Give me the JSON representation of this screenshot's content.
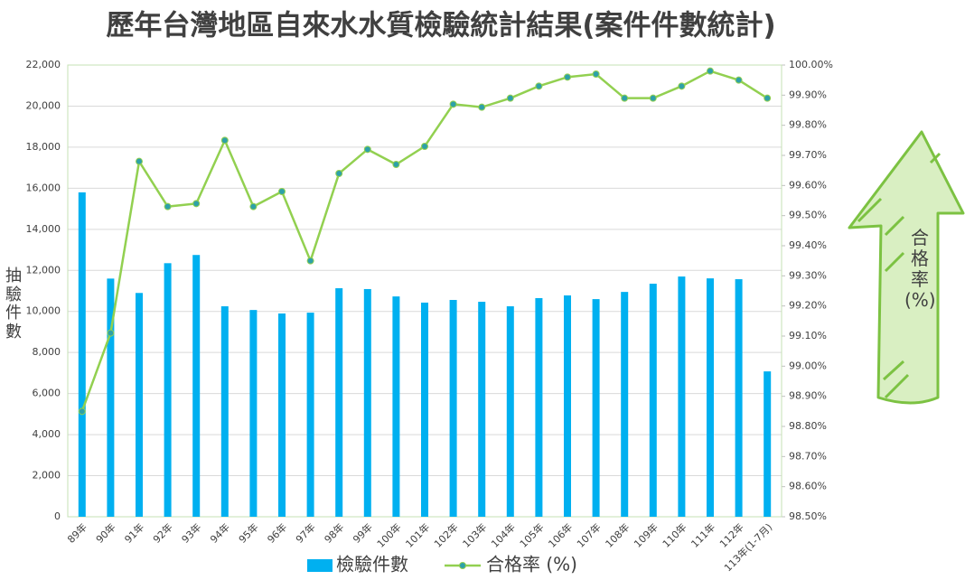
{
  "chart_data": {
    "type": "combo",
    "title": "歷年台灣地區自來水水質檢驗統計結果(案件件數統計)",
    "y_label": "抽驗件數",
    "annotation": "合格率(%)",
    "categories": [
      "89年",
      "90年",
      "91年",
      "92年",
      "93年",
      "94年",
      "95年",
      "96年",
      "97年",
      "98年",
      "99年",
      "100年",
      "101年",
      "102年",
      "103年",
      "104年",
      "105年",
      "106年",
      "107年",
      "108年",
      "109年",
      "110年",
      "111年",
      "112年",
      "113年(1-7月)"
    ],
    "series": [
      {
        "name": "檢驗件數",
        "type": "bar",
        "color": "#00b0f0",
        "values": [
          15800,
          11600,
          10900,
          12350,
          12750,
          10250,
          10070,
          9900,
          9940,
          11130,
          11090,
          10730,
          10430,
          10560,
          10470,
          10250,
          10650,
          10780,
          10600,
          10950,
          11350,
          11700,
          11610,
          11570,
          7080
        ]
      },
      {
        "name": "合格率 (%)",
        "type": "line",
        "axis": "y2",
        "color": "#92d050",
        "marker_color": "#2ea1a8",
        "values": [
          98.85,
          99.11,
          99.68,
          99.53,
          99.54,
          99.75,
          99.53,
          99.58,
          99.35,
          99.64,
          99.72,
          99.67,
          99.73,
          99.87,
          99.86,
          99.89,
          99.93,
          99.96,
          99.97,
          99.89,
          99.89,
          99.93,
          99.98,
          99.95,
          99.89
        ]
      }
    ],
    "ylim": [
      0,
      22000
    ],
    "yticks": [
      0,
      {
        "value": 2000,
        "label": "2,000"
      },
      {
        "value": 4000,
        "label": "4,000"
      },
      {
        "value": 6000,
        "label": "6,000"
      },
      {
        "value": 8000,
        "label": "8,000"
      },
      {
        "value": 10000,
        "label": "10,000"
      },
      {
        "value": 12000,
        "label": "12,000"
      },
      {
        "value": 14000,
        "label": "14,000"
      },
      {
        "value": 16000,
        "label": "16,000"
      },
      {
        "value": 18000,
        "label": "18,000"
      },
      {
        "value": 20000,
        "label": "20,000"
      },
      {
        "value": 22000,
        "label": "22,000"
      }
    ],
    "y2lim": [
      98.5,
      100
    ],
    "y2ticks": [
      {
        "value": 98.5,
        "label": "98.50%"
      },
      {
        "value": 98.6,
        "label": "98.60%"
      },
      {
        "value": 98.7,
        "label": "98.70%"
      },
      {
        "value": 98.8,
        "label": "98.80%"
      },
      {
        "value": 98.9,
        "label": "98.90%"
      },
      {
        "value": 99.0,
        "label": "99.00%"
      },
      {
        "value": 99.1,
        "label": "99.10%"
      },
      {
        "value": 99.2,
        "label": "99.20%"
      },
      {
        "value": 99.3,
        "label": "99.30%"
      },
      {
        "value": 99.4,
        "label": "99.40%"
      },
      {
        "value": 99.5,
        "label": "99.50%"
      },
      {
        "value": 99.6,
        "label": "99.60%"
      },
      {
        "value": 99.7,
        "label": "99.70%"
      },
      {
        "value": 99.8,
        "label": "99.80%"
      },
      {
        "value": 99.9,
        "label": "99.90%"
      },
      {
        "value": 100.0,
        "label": "100.00%"
      }
    ],
    "grid": true,
    "legend": "bottom"
  }
}
